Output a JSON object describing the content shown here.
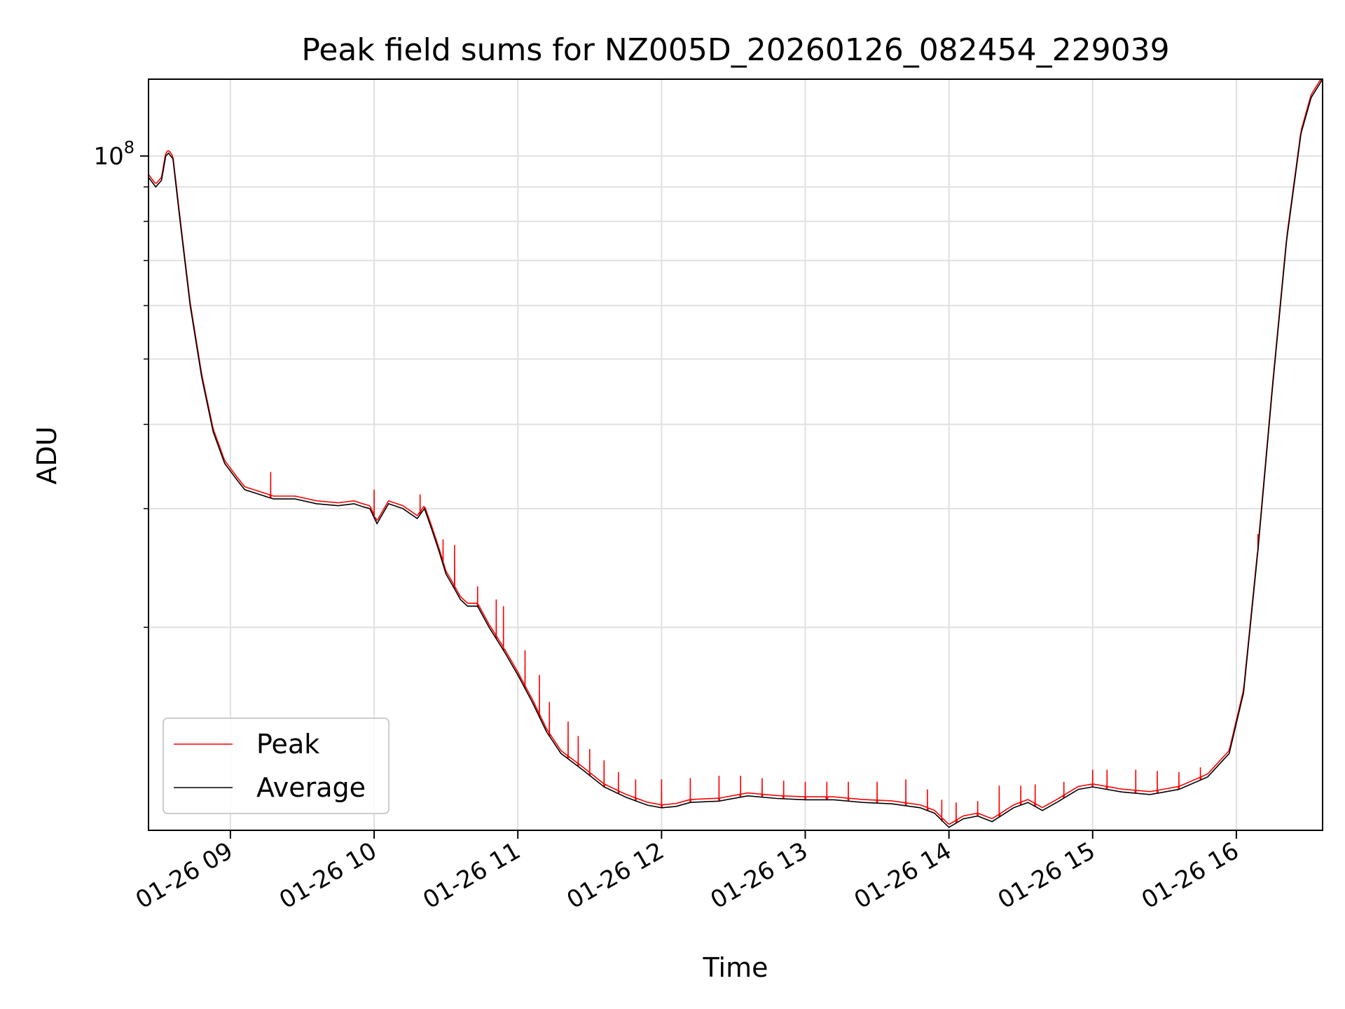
{
  "chart_data": {
    "type": "line",
    "title": "Peak field sums for NZ005D_20260126_082454_229039",
    "xlabel": "Time",
    "ylabel": "ADU",
    "yscale": "log",
    "ylim": [
      10000000,
      130000000
    ],
    "xlim": [
      8.43,
      16.6
    ],
    "grid": true,
    "legend_position": "bottom-left",
    "x_ticks": [
      {
        "x": 9,
        "label": "01-26 09"
      },
      {
        "x": 10,
        "label": "01-26 10"
      },
      {
        "x": 11,
        "label": "01-26 11"
      },
      {
        "x": 12,
        "label": "01-26 12"
      },
      {
        "x": 13,
        "label": "01-26 13"
      },
      {
        "x": 14,
        "label": "01-26 14"
      },
      {
        "x": 15,
        "label": "01-26 15"
      },
      {
        "x": 16,
        "label": "01-26 16"
      }
    ],
    "y_major_ticks": [
      {
        "y": 100000000,
        "base": "10",
        "exp": "8"
      }
    ],
    "y_minor_ticks": [
      20000000,
      30000000,
      40000000,
      50000000,
      60000000,
      70000000,
      80000000,
      90000000
    ],
    "colors": {
      "peak": "#ff0000",
      "average": "#000000",
      "grid": "#e0e0e0"
    },
    "series": [
      {
        "name": "Average",
        "color": "#000000",
        "x": [
          8.43,
          8.48,
          8.52,
          8.55,
          8.57,
          8.6,
          8.65,
          8.72,
          8.8,
          8.88,
          8.96,
          9.05,
          9.1,
          9.2,
          9.3,
          9.45,
          9.6,
          9.75,
          9.86,
          9.92,
          9.97,
          10.02,
          10.1,
          10.2,
          10.3,
          10.35,
          10.4,
          10.45,
          10.5,
          10.55,
          10.6,
          10.65,
          10.72,
          10.8,
          10.9,
          11.0,
          11.1,
          11.2,
          11.3,
          11.45,
          11.6,
          11.75,
          11.9,
          12.0,
          12.1,
          12.2,
          12.4,
          12.6,
          12.8,
          13.0,
          13.2,
          13.4,
          13.6,
          13.8,
          13.9,
          14.0,
          14.1,
          14.2,
          14.3,
          14.45,
          14.55,
          14.65,
          14.75,
          14.9,
          15.0,
          15.2,
          15.4,
          15.6,
          15.8,
          15.95,
          16.05,
          16.15,
          16.25,
          16.35,
          16.45,
          16.52,
          16.6
        ],
        "y": [
          93000000,
          90000000,
          92000000,
          100000000,
          101000000,
          99000000,
          80000000,
          60000000,
          47000000,
          39000000,
          35000000,
          33000000,
          32000000,
          31500000,
          31000000,
          31000000,
          30500000,
          30300000,
          30500000,
          30200000,
          30000000,
          28500000,
          30500000,
          30000000,
          29000000,
          30000000,
          28000000,
          26000000,
          24000000,
          23000000,
          22000000,
          21500000,
          21500000,
          20000000,
          18500000,
          17000000,
          15500000,
          14000000,
          13000000,
          12300000,
          11600000,
          11200000,
          10900000,
          10800000,
          10850000,
          11000000,
          11050000,
          11250000,
          11150000,
          11100000,
          11100000,
          11000000,
          10950000,
          10800000,
          10600000,
          10100000,
          10400000,
          10500000,
          10300000,
          10800000,
          11000000,
          10700000,
          11000000,
          11500000,
          11600000,
          11400000,
          11300000,
          11500000,
          12000000,
          13000000,
          16000000,
          26000000,
          45000000,
          75000000,
          108000000,
          122000000,
          130000000
        ]
      },
      {
        "name": "Peak",
        "color": "#ff0000",
        "note": "follows Average closely with intermittent upward spikes",
        "spikes_x": [
          9.28,
          10.0,
          10.32,
          10.48,
          10.56,
          10.72,
          10.85,
          10.9,
          11.05,
          11.15,
          11.22,
          11.35,
          11.42,
          11.5,
          11.6,
          11.7,
          11.82,
          12.0,
          12.2,
          12.4,
          12.55,
          12.7,
          12.85,
          13.0,
          13.15,
          13.3,
          13.5,
          13.7,
          13.85,
          13.95,
          14.05,
          14.2,
          14.35,
          14.5,
          14.6,
          14.8,
          15.0,
          15.1,
          15.3,
          15.45,
          15.6,
          15.75,
          16.15
        ],
        "spikes_y": [
          34000000,
          32000000,
          31500000,
          27000000,
          26500000,
          23000000,
          22000000,
          21500000,
          18500000,
          17000000,
          15500000,
          14500000,
          13800000,
          13200000,
          12700000,
          12200000,
          11900000,
          11900000,
          11950000,
          12050000,
          12050000,
          11950000,
          11850000,
          11800000,
          11800000,
          11800000,
          11800000,
          11900000,
          11500000,
          11100000,
          11000000,
          11050000,
          11650000,
          11650000,
          11700000,
          11800000,
          12300000,
          12300000,
          12300000,
          12250000,
          12200000,
          12400000,
          27500000
        ]
      }
    ]
  }
}
